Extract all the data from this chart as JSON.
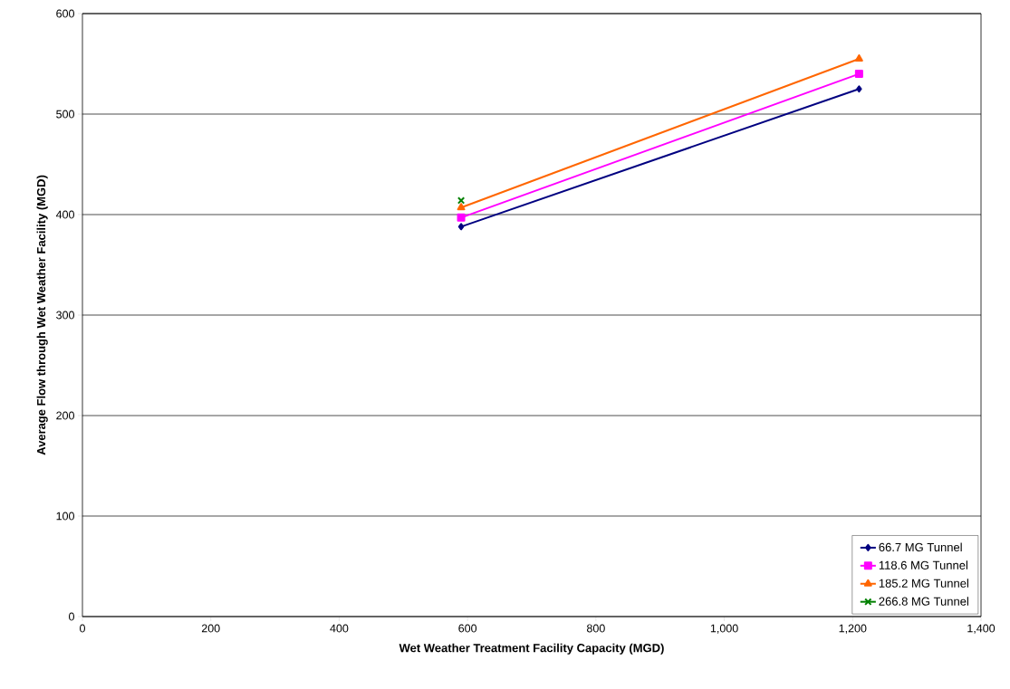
{
  "chart_data": {
    "type": "line",
    "xlabel": "Wet Weather Treatment Facility Capacity (MGD)",
    "ylabel": "Average Flow through Wet Weather Facility (MGD)",
    "xlim": [
      0,
      1400
    ],
    "ylim": [
      0,
      600
    ],
    "xticks": [
      0,
      200,
      400,
      600,
      800,
      {
        "value": 1000,
        "label": "1,000"
      },
      {
        "value": 1200,
        "label": "1,200"
      },
      {
        "value": 1400,
        "label": "1,400"
      }
    ],
    "yticks": [
      0,
      100,
      200,
      300,
      400,
      500,
      600
    ],
    "grid": "y",
    "legend": "bottom right",
    "x": [
      590,
      1210
    ],
    "series": [
      {
        "name": "66.7 MG Tunnel",
        "color": "#000080",
        "marker": "diamond",
        "values": [
          388,
          525
        ]
      },
      {
        "name": "118.6 MG Tunnel",
        "color": "#ff00ff",
        "marker": "square",
        "values": [
          397,
          540
        ]
      },
      {
        "name": "185.2 MG Tunnel",
        "color": "#ff6600",
        "marker": "triangle",
        "values": [
          407,
          555
        ]
      },
      {
        "name": "266.8 MG Tunnel",
        "color": "#008000",
        "marker": "cross",
        "values": [
          414,
          null
        ]
      }
    ]
  }
}
